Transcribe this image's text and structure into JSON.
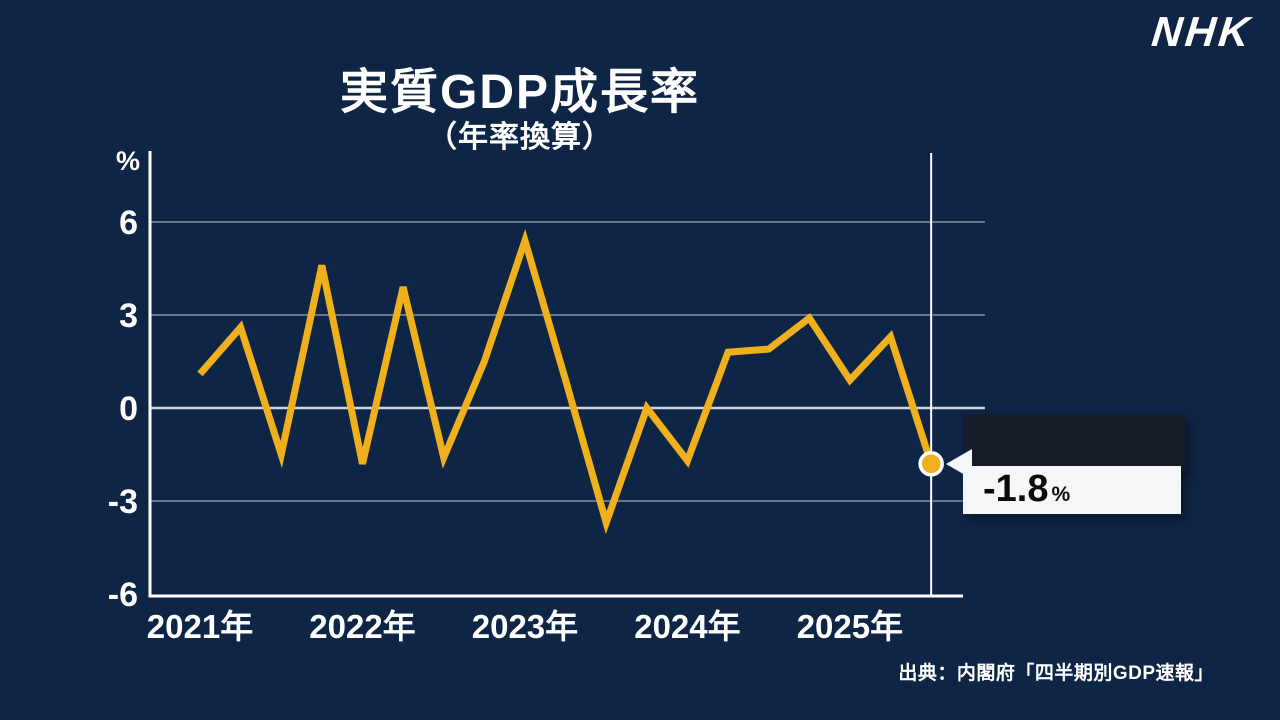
{
  "logo": "NHK",
  "title": "実質GDP成長率",
  "subtitle": "（年率換算）",
  "source": "出典：内閣府「四半期別GDP速報」",
  "callout": {
    "value": "-1.8",
    "unit": "%"
  },
  "colors": {
    "background": "#0f2546",
    "line": "#f0b01e",
    "grid": "#66758c",
    "zero_line": "#cfd6de",
    "axis": "#ffffff",
    "callout_dark": "#161d28",
    "callout_light": "#f4f6f7"
  },
  "chart_data": {
    "type": "line",
    "title": "実質GDP成長率（年率換算）",
    "ylabel": "%",
    "y_axis_unit": "%",
    "y_ticks": [
      6,
      3,
      0,
      -3,
      -6
    ],
    "ylim": [
      -6,
      8
    ],
    "x_labels": [
      "2021年",
      "2022年",
      "2023年",
      "2024年",
      "2025年"
    ],
    "quarters_per_year": 4,
    "series": [
      {
        "name": "実質GDP成長率(年率換算)",
        "values": [
          1.1,
          2.6,
          -1.5,
          4.6,
          -1.8,
          3.9,
          -1.6,
          1.5,
          5.4,
          0.9,
          -3.7,
          0.0,
          -1.7,
          1.8,
          1.9,
          2.9,
          0.9,
          2.3,
          -1.8
        ]
      }
    ],
    "highlight_index": 18,
    "highlight_label": "-1.8%",
    "grid": true,
    "legend": false
  }
}
